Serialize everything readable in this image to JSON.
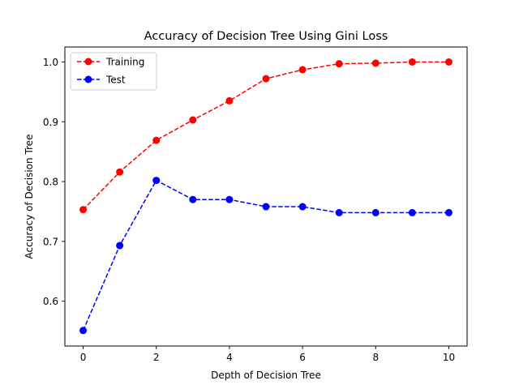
{
  "chart_data": {
    "type": "line",
    "title": "Accuracy of Decision Tree Using Gini Loss",
    "xlabel": "Depth of Decision Tree",
    "ylabel": "Accuracy of Decision Tree",
    "x": [
      0,
      1,
      2,
      3,
      4,
      5,
      6,
      7,
      8,
      9,
      10
    ],
    "xlim": [
      -0.5,
      10.5
    ],
    "ylim": [
      0.525,
      1.025
    ],
    "xticks": [
      0,
      2,
      4,
      6,
      8,
      10
    ],
    "xtick_labels": [
      "0",
      "2",
      "4",
      "6",
      "8",
      "10"
    ],
    "yticks": [
      0.6,
      0.7,
      0.8,
      0.9,
      1.0
    ],
    "ytick_labels": [
      "0.6",
      "0.7",
      "0.8",
      "0.9",
      "1.0"
    ],
    "grid": false,
    "legend_position": "top-left",
    "series": [
      {
        "name": "Training",
        "color": "#ff0000",
        "line_style": "dashed",
        "marker": "circle",
        "values": [
          0.753,
          0.816,
          0.869,
          0.903,
          0.935,
          0.972,
          0.987,
          0.997,
          0.998,
          1.0,
          1.0
        ]
      },
      {
        "name": "Test",
        "color": "#0000ff",
        "line_style": "dashed",
        "marker": "circle",
        "values": [
          0.551,
          0.693,
          0.802,
          0.77,
          0.77,
          0.758,
          0.758,
          0.748,
          0.748,
          0.748,
          0.748
        ]
      }
    ]
  }
}
